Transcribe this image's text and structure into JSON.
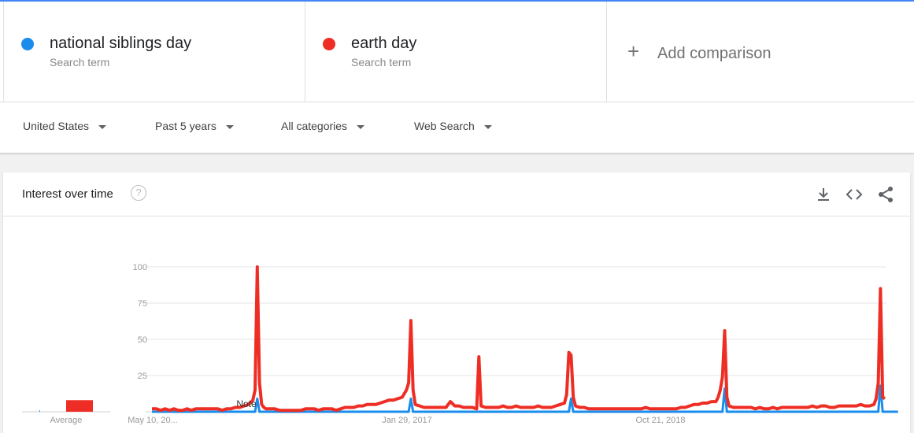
{
  "colors": {
    "series1": "#1a8cec",
    "series2": "#ee2e24",
    "accent": "#4285f4"
  },
  "terms": [
    {
      "name": "national siblings day",
      "sub": "Search term",
      "color": "#1a8cec"
    },
    {
      "name": "earth day",
      "sub": "Search term",
      "color": "#ee2e24"
    }
  ],
  "add_comparison": {
    "label": "Add comparison",
    "icon": "plus-icon"
  },
  "filters": [
    {
      "label": "United States"
    },
    {
      "label": "Past 5 years"
    },
    {
      "label": "All categories"
    },
    {
      "label": "Web Search"
    }
  ],
  "card": {
    "title": "Interest over time",
    "icons": [
      "help-icon",
      "download-icon",
      "embed-icon",
      "share-icon"
    ]
  },
  "chart_data": {
    "type": "line",
    "y_ticks": [
      "100",
      "75",
      "50",
      "25"
    ],
    "ylim": [
      0,
      100
    ],
    "x_tick_labels": [
      "May 10, 20...",
      "Jan 29, 2017",
      "Oct 21, 2018"
    ],
    "average_label": "Average",
    "note_label": "Note",
    "averages": {
      "national siblings day": 1,
      "earth day": 4
    },
    "weeks": 261,
    "series": [
      {
        "name": "national siblings day",
        "color": "#1a8cec",
        "points": [
          [
            0,
            0
          ],
          [
            47,
            0
          ],
          [
            48,
            9
          ],
          [
            49,
            0
          ],
          [
            117,
            0
          ],
          [
            118,
            9
          ],
          [
            119,
            0
          ],
          [
            190,
            0
          ],
          [
            191,
            9
          ],
          [
            192,
            0
          ],
          [
            260,
            0
          ],
          [
            261,
            16
          ],
          [
            262,
            0
          ],
          [
            331,
            0
          ],
          [
            332,
            18
          ],
          [
            333,
            0
          ],
          [
            340,
            0
          ]
        ]
      },
      {
        "name": "earth day",
        "color": "#ee2e24",
        "points": [
          [
            0,
            2
          ],
          [
            2,
            2
          ],
          [
            4,
            1
          ],
          [
            6,
            2
          ],
          [
            8,
            1
          ],
          [
            10,
            2
          ],
          [
            12,
            1
          ],
          [
            14,
            1
          ],
          [
            16,
            2
          ],
          [
            18,
            1
          ],
          [
            20,
            2
          ],
          [
            22,
            2
          ],
          [
            24,
            2
          ],
          [
            26,
            2
          ],
          [
            28,
            2
          ],
          [
            30,
            2
          ],
          [
            32,
            1
          ],
          [
            34,
            2
          ],
          [
            36,
            2
          ],
          [
            38,
            3
          ],
          [
            40,
            3
          ],
          [
            42,
            4
          ],
          [
            44,
            5
          ],
          [
            46,
            8
          ],
          [
            47,
            15
          ],
          [
            48,
            100
          ],
          [
            49,
            20
          ],
          [
            50,
            5
          ],
          [
            51,
            3
          ],
          [
            52,
            2
          ],
          [
            54,
            2
          ],
          [
            56,
            2
          ],
          [
            58,
            1
          ],
          [
            60,
            1
          ],
          [
            62,
            1
          ],
          [
            64,
            1
          ],
          [
            66,
            1
          ],
          [
            68,
            1
          ],
          [
            70,
            2
          ],
          [
            72,
            2
          ],
          [
            74,
            2
          ],
          [
            76,
            1
          ],
          [
            78,
            2
          ],
          [
            80,
            2
          ],
          [
            82,
            2
          ],
          [
            84,
            1
          ],
          [
            86,
            2
          ],
          [
            88,
            3
          ],
          [
            90,
            3
          ],
          [
            92,
            3
          ],
          [
            94,
            4
          ],
          [
            96,
            4
          ],
          [
            98,
            5
          ],
          [
            100,
            5
          ],
          [
            102,
            5
          ],
          [
            104,
            6
          ],
          [
            106,
            7
          ],
          [
            108,
            8
          ],
          [
            110,
            8
          ],
          [
            112,
            9
          ],
          [
            114,
            10
          ],
          [
            116,
            15
          ],
          [
            117,
            20
          ],
          [
            118,
            63
          ],
          [
            119,
            15
          ],
          [
            120,
            5
          ],
          [
            122,
            4
          ],
          [
            124,
            3
          ],
          [
            126,
            3
          ],
          [
            128,
            3
          ],
          [
            130,
            3
          ],
          [
            132,
            3
          ],
          [
            134,
            3
          ],
          [
            136,
            7
          ],
          [
            138,
            4
          ],
          [
            140,
            4
          ],
          [
            142,
            3
          ],
          [
            144,
            3
          ],
          [
            146,
            3
          ],
          [
            148,
            2
          ],
          [
            149,
            38
          ],
          [
            150,
            4
          ],
          [
            152,
            3
          ],
          [
            154,
            3
          ],
          [
            156,
            3
          ],
          [
            158,
            3
          ],
          [
            160,
            4
          ],
          [
            162,
            3
          ],
          [
            164,
            3
          ],
          [
            166,
            4
          ],
          [
            168,
            3
          ],
          [
            170,
            3
          ],
          [
            172,
            3
          ],
          [
            174,
            3
          ],
          [
            176,
            4
          ],
          [
            178,
            3
          ],
          [
            180,
            3
          ],
          [
            182,
            3
          ],
          [
            184,
            4
          ],
          [
            186,
            5
          ],
          [
            188,
            6
          ],
          [
            189,
            12
          ],
          [
            190,
            41
          ],
          [
            191,
            39
          ],
          [
            192,
            10
          ],
          [
            193,
            4
          ],
          [
            195,
            3
          ],
          [
            197,
            3
          ],
          [
            199,
            2
          ],
          [
            201,
            2
          ],
          [
            203,
            2
          ],
          [
            205,
            2
          ],
          [
            207,
            2
          ],
          [
            209,
            2
          ],
          [
            211,
            2
          ],
          [
            213,
            2
          ],
          [
            215,
            2
          ],
          [
            217,
            2
          ],
          [
            219,
            2
          ],
          [
            221,
            2
          ],
          [
            223,
            2
          ],
          [
            225,
            3
          ],
          [
            227,
            2
          ],
          [
            229,
            2
          ],
          [
            231,
            2
          ],
          [
            233,
            2
          ],
          [
            235,
            2
          ],
          [
            237,
            2
          ],
          [
            239,
            2
          ],
          [
            241,
            3
          ],
          [
            243,
            3
          ],
          [
            245,
            4
          ],
          [
            247,
            5
          ],
          [
            249,
            5
          ],
          [
            251,
            6
          ],
          [
            253,
            6
          ],
          [
            255,
            7
          ],
          [
            257,
            7
          ],
          [
            258,
            10
          ],
          [
            259,
            15
          ],
          [
            260,
            24
          ],
          [
            261,
            56
          ],
          [
            262,
            10
          ],
          [
            263,
            4
          ],
          [
            265,
            3
          ],
          [
            267,
            3
          ],
          [
            269,
            3
          ],
          [
            271,
            3
          ],
          [
            273,
            3
          ],
          [
            275,
            2
          ],
          [
            277,
            3
          ],
          [
            279,
            2
          ],
          [
            281,
            2
          ],
          [
            283,
            3
          ],
          [
            285,
            2
          ],
          [
            287,
            3
          ],
          [
            289,
            3
          ],
          [
            291,
            3
          ],
          [
            293,
            3
          ],
          [
            295,
            3
          ],
          [
            297,
            3
          ],
          [
            299,
            3
          ],
          [
            301,
            4
          ],
          [
            303,
            3
          ],
          [
            305,
            4
          ],
          [
            307,
            4
          ],
          [
            309,
            3
          ],
          [
            311,
            3
          ],
          [
            313,
            4
          ],
          [
            315,
            4
          ],
          [
            317,
            4
          ],
          [
            319,
            4
          ],
          [
            321,
            4
          ],
          [
            323,
            5
          ],
          [
            325,
            4
          ],
          [
            327,
            4
          ],
          [
            329,
            5
          ],
          [
            330,
            9
          ],
          [
            331,
            20
          ],
          [
            332,
            85
          ],
          [
            333,
            10
          ],
          [
            334,
            9
          ]
        ]
      }
    ]
  }
}
